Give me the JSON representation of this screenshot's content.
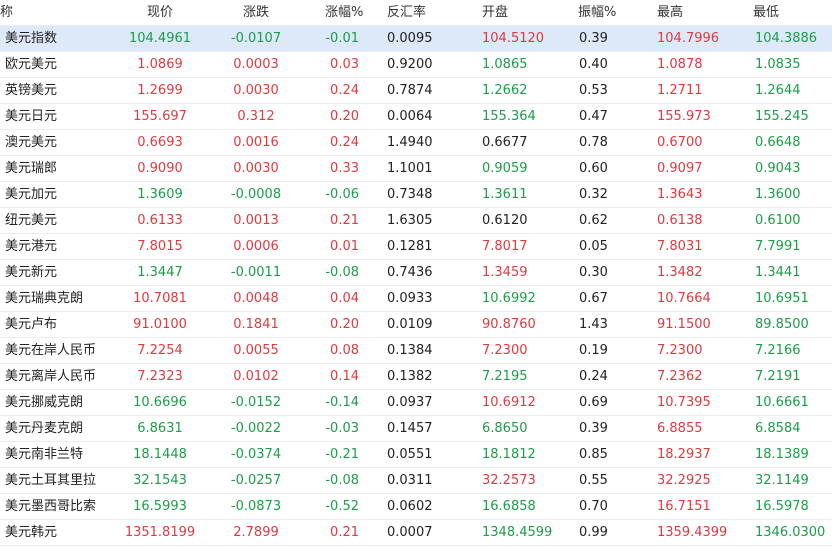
{
  "table": {
    "headers": [
      "称",
      "现价",
      "涨跌",
      "涨幅%",
      "反汇率",
      "开盘",
      "振幅%",
      "最高",
      "最低"
    ],
    "rows": [
      [
        "美元指数",
        "104.4961",
        "-0.0107",
        "-0.01",
        "0.0095",
        "104.5120",
        "0.39",
        "104.7996",
        "104.3886"
      ],
      [
        "欧元美元",
        "1.0869",
        "0.0003",
        "0.03",
        "0.9200",
        "1.0865",
        "0.40",
        "1.0878",
        "1.0835"
      ],
      [
        "英镑美元",
        "1.2699",
        "0.0030",
        "0.24",
        "0.7874",
        "1.2662",
        "0.53",
        "1.2711",
        "1.2644"
      ],
      [
        "美元日元",
        "155.697",
        "0.312",
        "0.20",
        "0.0064",
        "155.364",
        "0.47",
        "155.973",
        "155.245"
      ],
      [
        "澳元美元",
        "0.6693",
        "0.0016",
        "0.24",
        "1.4940",
        "0.6677",
        "0.78",
        "0.6700",
        "0.6648"
      ],
      [
        "美元瑞郎",
        "0.9090",
        "0.0030",
        "0.33",
        "1.1001",
        "0.9059",
        "0.60",
        "0.9097",
        "0.9043"
      ],
      [
        "美元加元",
        "1.3609",
        "-0.0008",
        "-0.06",
        "0.7348",
        "1.3611",
        "0.32",
        "1.3643",
        "1.3600"
      ],
      [
        "纽元美元",
        "0.6133",
        "0.0013",
        "0.21",
        "1.6305",
        "0.6120",
        "0.62",
        "0.6138",
        "0.6100"
      ],
      [
        "美元港元",
        "7.8015",
        "0.0006",
        "0.01",
        "0.1281",
        "7.8017",
        "0.05",
        "7.8031",
        "7.7991"
      ],
      [
        "美元新元",
        "1.3447",
        "-0.0011",
        "-0.08",
        "0.7436",
        "1.3459",
        "0.30",
        "1.3482",
        "1.3441"
      ],
      [
        "美元瑞典克朗",
        "10.7081",
        "0.0048",
        "0.04",
        "0.0933",
        "10.6992",
        "0.67",
        "10.7664",
        "10.6951"
      ],
      [
        "美元卢布",
        "91.0100",
        "0.1841",
        "0.20",
        "0.0109",
        "90.8760",
        "1.43",
        "91.1500",
        "89.8500"
      ],
      [
        "美元在岸人民币",
        "7.2254",
        "0.0055",
        "0.08",
        "0.1384",
        "7.2300",
        "0.19",
        "7.2300",
        "7.2166"
      ],
      [
        "美元离岸人民币",
        "7.2323",
        "0.0102",
        "0.14",
        "0.1382",
        "7.2195",
        "0.24",
        "7.2362",
        "7.2191"
      ],
      [
        "美元挪威克朗",
        "10.6696",
        "-0.0152",
        "-0.14",
        "0.0937",
        "10.6912",
        "0.69",
        "10.7395",
        "10.6661"
      ],
      [
        "美元丹麦克朗",
        "6.8631",
        "-0.0022",
        "-0.03",
        "0.1457",
        "6.8650",
        "0.39",
        "6.8855",
        "6.8584"
      ],
      [
        "美元南非兰特",
        "18.1448",
        "-0.0374",
        "-0.21",
        "0.0551",
        "18.1812",
        "0.85",
        "18.2937",
        "18.1389"
      ],
      [
        "美元土耳其里拉",
        "32.1543",
        "-0.0257",
        "-0.08",
        "0.0311",
        "32.2573",
        "0.55",
        "32.2925",
        "32.1149"
      ],
      [
        "美元墨西哥比索",
        "16.5993",
        "-0.0873",
        "-0.52",
        "0.0602",
        "16.6858",
        "0.70",
        "16.7151",
        "16.5978"
      ],
      [
        "美元韩元",
        "1351.8199",
        "2.7899",
        "0.21",
        "0.0007",
        "1348.4599",
        "0.99",
        "1359.4399",
        "1346.0300"
      ]
    ],
    "colors": {
      "up": "#e0393e",
      "down": "#1a9e48",
      "flat": "#222222",
      "selected": "#dde8f8"
    }
  }
}
